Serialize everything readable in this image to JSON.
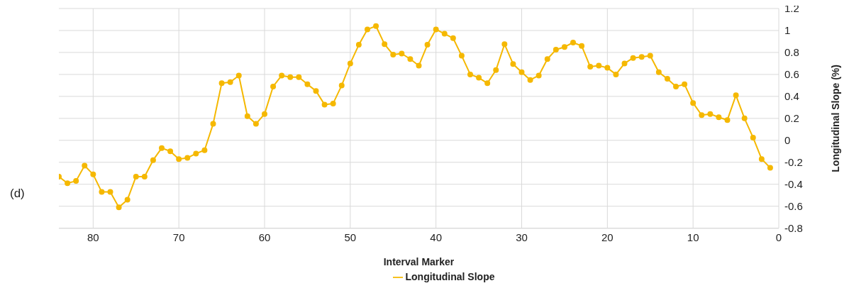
{
  "chart_data": {
    "type": "line",
    "xlabel": "Interval Marker",
    "ylabel": "Longitudinal Slope (%)",
    "annotations": [
      "(d)"
    ],
    "x": [
      84,
      83,
      82,
      81,
      80,
      79,
      78,
      77,
      76,
      75,
      74,
      73,
      72,
      71,
      70,
      69,
      68,
      67,
      66,
      65,
      64,
      63,
      62,
      61,
      60,
      59,
      58,
      57,
      56,
      55,
      54,
      53,
      52,
      51,
      50,
      49,
      48,
      47,
      46,
      45,
      44,
      43,
      42,
      41,
      40,
      39,
      38,
      37,
      36,
      35,
      34,
      33,
      32,
      31,
      30,
      29,
      28,
      27,
      26,
      25,
      24,
      23,
      22,
      21,
      20,
      19,
      18,
      17,
      16,
      15,
      14,
      13,
      12,
      11,
      10,
      9,
      8,
      7,
      6,
      5,
      4,
      3,
      2,
      1
    ],
    "series": [
      {
        "name": "Longitudinal Slope",
        "color": "#f5b800",
        "values": [
          -0.33,
          -0.39,
          -0.37,
          -0.23,
          -0.31,
          -0.47,
          -0.47,
          -0.61,
          -0.54,
          -0.33,
          -0.33,
          -0.18,
          -0.07,
          -0.1,
          -0.17,
          -0.16,
          -0.12,
          -0.09,
          0.15,
          0.52,
          0.53,
          0.59,
          0.22,
          0.15,
          0.24,
          0.49,
          0.59,
          0.575,
          0.575,
          0.51,
          0.45,
          0.325,
          0.335,
          0.5,
          0.7,
          0.87,
          1.01,
          1.04,
          0.875,
          0.78,
          0.79,
          0.74,
          0.68,
          0.87,
          1.01,
          0.97,
          0.93,
          0.77,
          0.6,
          0.57,
          0.52,
          0.64,
          0.875,
          0.695,
          0.62,
          0.55,
          0.59,
          0.74,
          0.825,
          0.85,
          0.89,
          0.86,
          0.67,
          0.68,
          0.66,
          0.6,
          0.7,
          0.75,
          0.76,
          0.77,
          0.62,
          0.56,
          0.49,
          0.51,
          0.34,
          0.23,
          0.24,
          0.21,
          0.185,
          0.41,
          0.2,
          0.025,
          -0.17,
          -0.25
        ]
      }
    ],
    "xlim": [
      84,
      0
    ],
    "xticks": [
      80,
      70,
      60,
      50,
      40,
      30,
      20,
      10,
      0
    ],
    "ylim": [
      -0.8,
      1.2
    ],
    "yticks": [
      -0.8,
      -0.6,
      -0.4,
      -0.2,
      0,
      0.2,
      0.4,
      0.6,
      0.8,
      1,
      1.2
    ],
    "grid": true,
    "legend": "bottom",
    "marker": "circle",
    "line_style": "solid"
  }
}
